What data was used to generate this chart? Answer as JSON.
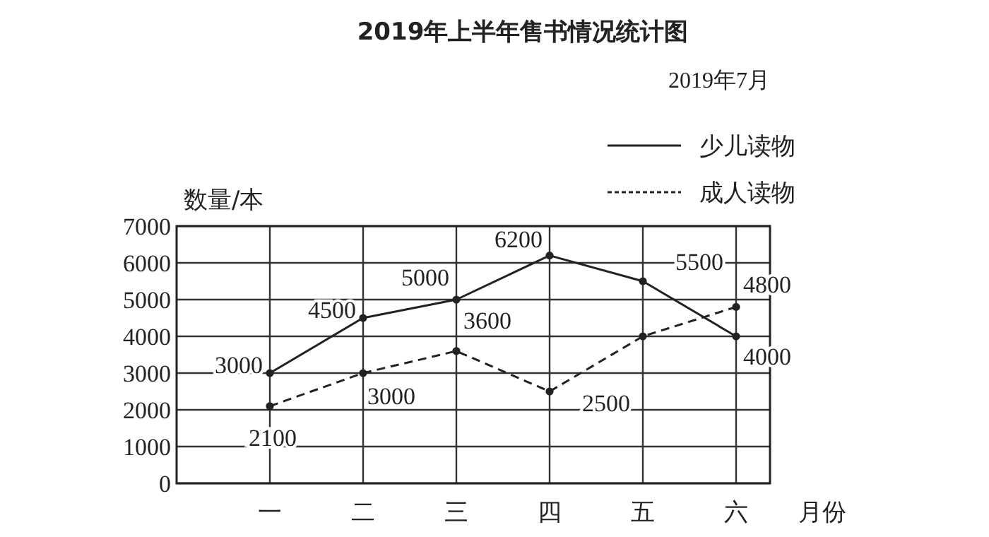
{
  "chart_data": {
    "type": "line",
    "title": "2019年上半年售书情况统计图",
    "subtitle": "2019年7月",
    "ylabel": "数量/本",
    "xlabel": "月份",
    "categories": [
      "一",
      "二",
      "三",
      "四",
      "五",
      "六"
    ],
    "series": [
      {
        "name": "少儿读物",
        "color": "#222222",
        "line_style": "solid",
        "values": [
          3000,
          4500,
          5000,
          6200,
          5500,
          4000
        ],
        "value_labels": [
          "3000",
          "4500",
          "5000",
          "6200",
          "5500",
          "4000"
        ]
      },
      {
        "name": "成人读物",
        "color": "#222222",
        "line_style": "dashed",
        "values": [
          2100,
          3000,
          3600,
          2500,
          4000,
          4800
        ],
        "value_labels": [
          "2100",
          "3000",
          "3600",
          "2500",
          null,
          "4800"
        ]
      }
    ],
    "ylim": [
      0,
      7000
    ],
    "yticks": [
      0,
      1000,
      2000,
      3000,
      4000,
      5000,
      6000,
      7000
    ],
    "grid": true,
    "legend": "top right",
    "marker": "circle"
  }
}
